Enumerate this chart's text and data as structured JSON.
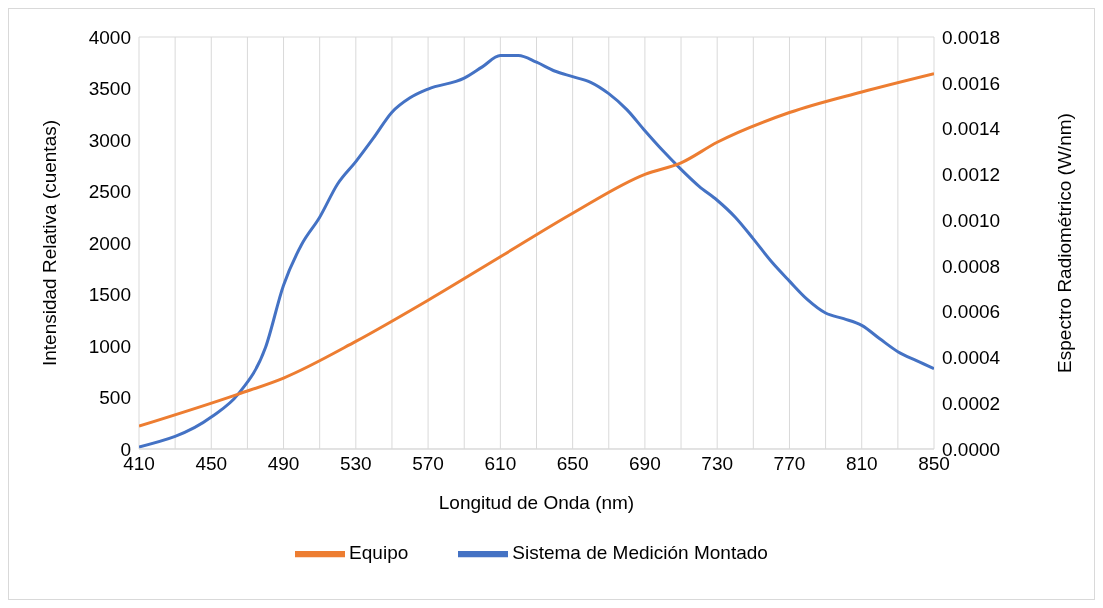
{
  "chart_data": {
    "type": "line",
    "xlabel": "Longitud de Onda (nm)",
    "ylabel": "Intensidad Relativa (cuentas)",
    "y2label": "Espectro Radiométrico (W/nm)",
    "xlim": [
      410,
      850
    ],
    "xticks": [
      410,
      {
        "value": 430,
        "label": null
      },
      450,
      {
        "value": 470,
        "label": null
      },
      490,
      {
        "value": 510,
        "label": null
      },
      530,
      {
        "value": 550,
        "label": null
      },
      570,
      {
        "value": 590,
        "label": null
      },
      610,
      {
        "value": 630,
        "label": null
      },
      650,
      {
        "value": 670,
        "label": null
      },
      690,
      {
        "value": 710,
        "label": null
      },
      730,
      {
        "value": 750,
        "label": null
      },
      770,
      {
        "value": 790,
        "label": null
      },
      810,
      {
        "value": 830,
        "label": null
      },
      850
    ],
    "ylim": [
      0,
      4000
    ],
    "yticks": [
      0,
      500,
      1000,
      1500,
      2000,
      2500,
      3000,
      3500,
      4000
    ],
    "y2lim": [
      0,
      0.0018
    ],
    "y2ticks": [
      {
        "value": 0,
        "label": "0.0000"
      },
      {
        "value": 0.0002,
        "label": "0.0002"
      },
      {
        "value": 0.0004,
        "label": "0.0004"
      },
      {
        "value": 0.0006,
        "label": "0.0006"
      },
      {
        "value": 0.0008,
        "label": "0.0008"
      },
      {
        "value": 0.001,
        "label": "0.0010"
      },
      {
        "value": 0.0012,
        "label": "0.0012"
      },
      {
        "value": 0.0014,
        "label": "0.0014"
      },
      {
        "value": 0.0016,
        "label": "0.0016"
      },
      {
        "value": 0.0018,
        "label": "0.0018"
      }
    ],
    "grid": true,
    "legend": "bottom",
    "marker": "none",
    "line_style": "solid",
    "series": [
      {
        "name": "Sistema de Medición Montado",
        "color": "#4472c4",
        "x": [
          410,
          450,
          465,
          480,
          490,
          500,
          510,
          520,
          530,
          540,
          550,
          560,
          570,
          590,
          600,
          610,
          620,
          630,
          640,
          650,
          660,
          670,
          680,
          690,
          700,
          710,
          720,
          730,
          740,
          750,
          760,
          770,
          780,
          790,
          800,
          810,
          820,
          830,
          840,
          850
        ],
        "values": [
          20,
          310,
          535,
          985,
          1590,
          1985,
          2250,
          2575,
          2790,
          3025,
          3270,
          3410,
          3495,
          3600,
          3710,
          3820,
          3820,
          3755,
          3670,
          3615,
          3560,
          3450,
          3295,
          3090,
          2895,
          2715,
          2550,
          2415,
          2250,
          2040,
          1820,
          1630,
          1450,
          1320,
          1265,
          1200,
          1070,
          945,
          860,
          780
        ]
      },
      {
        "name": "Equipo",
        "color": "#ed7d31",
        "axis": "y2",
        "x": [
          410,
          465,
          490,
          530,
          570,
          610,
          650,
          690,
          710,
          730,
          770,
          810,
          850
        ],
        "values": [
          0.0001,
          0.00024,
          0.00031,
          0.00047,
          0.00065,
          0.00084,
          0.00103,
          0.0012,
          0.00125,
          0.00134,
          0.00147,
          0.00156,
          0.00164
        ]
      }
    ]
  }
}
